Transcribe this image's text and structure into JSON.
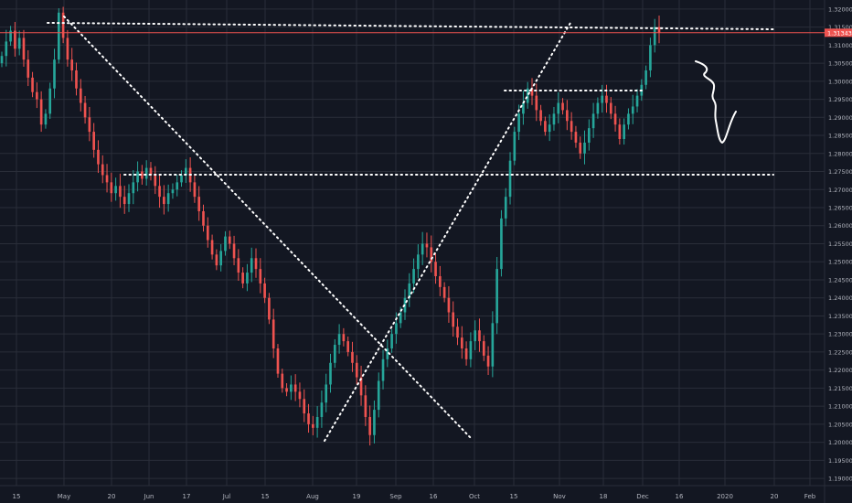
{
  "colors": {
    "background": "#131722",
    "grid": "#2a2e39",
    "up": "#26a69a",
    "down": "#ef5350",
    "drawing": "#ffffff",
    "last_price_line": "#ef5350"
  },
  "chart_data": {
    "type": "candlestick",
    "title": "",
    "instrument": "",
    "grid": true,
    "ylim": [
      1.188,
      1.3225
    ],
    "x_ticks": [
      "15",
      "May",
      "20",
      "Jun",
      "17",
      "Jul",
      "15",
      "Aug",
      "19",
      "Sep",
      "16",
      "Oct",
      "15",
      "Nov",
      "18",
      "Dec",
      "16",
      "2020",
      "20",
      "Feb"
    ],
    "y_ticks": [
      "1.32000",
      "1.31500",
      "1.31000",
      "1.30500",
      "1.30000",
      "1.29500",
      "1.29000",
      "1.28500",
      "1.28000",
      "1.27500",
      "1.27000",
      "1.26500",
      "1.26000",
      "1.25500",
      "1.25000",
      "1.24500",
      "1.24000",
      "1.23500",
      "1.23000",
      "1.22500",
      "1.22000",
      "1.21500",
      "1.21000",
      "1.20500",
      "1.20000",
      "1.19500",
      "1.19000"
    ],
    "last_price": "1.31343",
    "price_path": [
      1.307,
      1.311,
      1.314,
      1.309,
      1.312,
      1.306,
      1.301,
      1.297,
      1.295,
      1.288,
      1.291,
      1.298,
      1.306,
      1.319,
      1.312,
      1.306,
      1.303,
      1.298,
      1.294,
      1.29,
      1.286,
      1.281,
      1.277,
      1.274,
      1.272,
      1.269,
      1.271,
      1.268,
      1.266,
      1.269,
      1.272,
      1.275,
      1.273,
      1.276,
      1.274,
      1.271,
      1.268,
      1.266,
      1.269,
      1.27,
      1.272,
      1.274,
      1.276,
      1.272,
      1.268,
      1.264,
      1.26,
      1.256,
      1.252,
      1.249,
      1.253,
      1.257,
      1.255,
      1.251,
      1.247,
      1.244,
      1.247,
      1.251,
      1.248,
      1.244,
      1.24,
      1.234,
      1.226,
      1.219,
      1.215,
      1.214,
      1.216,
      1.214,
      1.212,
      1.208,
      1.205,
      1.204,
      1.207,
      1.211,
      1.216,
      1.222,
      1.227,
      1.23,
      1.228,
      1.225,
      1.222,
      1.218,
      1.213,
      1.207,
      1.202,
      1.209,
      1.217,
      1.223,
      1.226,
      1.23,
      1.233,
      1.236,
      1.24,
      1.244,
      1.248,
      1.252,
      1.255,
      1.254,
      1.25,
      1.246,
      1.243,
      1.24,
      1.236,
      1.232,
      1.229,
      1.226,
      1.223,
      1.228,
      1.231,
      1.228,
      1.224,
      1.221,
      1.233,
      1.248,
      1.262,
      1.268,
      1.278,
      1.286,
      1.291,
      1.294,
      1.298,
      1.296,
      1.292,
      1.289,
      1.286,
      1.288,
      1.291,
      1.294,
      1.292,
      1.289,
      1.286,
      1.283,
      1.28,
      1.283,
      1.287,
      1.291,
      1.294,
      1.296,
      1.294,
      1.291,
      1.288,
      1.284,
      1.288,
      1.291,
      1.293,
      1.296,
      1.299,
      1.303,
      1.31,
      1.315,
      1.3134
    ],
    "drawings": [
      {
        "type": "horizontal",
        "style": "dotted",
        "price": 1.318,
        "from": "Apr",
        "to": "Feb"
      },
      {
        "type": "horizontal",
        "style": "dotted",
        "price": 1.2757,
        "from": "May",
        "to": "Feb"
      },
      {
        "type": "horizontal",
        "style": "dotted",
        "price": 1.2993,
        "from": "Oct",
        "to": "Dec"
      },
      {
        "type": "trend",
        "style": "dotted",
        "from": "May",
        "to": "Oct"
      },
      {
        "type": "trend",
        "style": "dotted",
        "from": "Aug",
        "to": "Nov"
      },
      {
        "type": "freehand",
        "style": "solid",
        "note": "down arrow"
      }
    ]
  }
}
